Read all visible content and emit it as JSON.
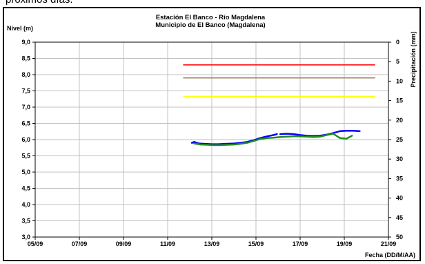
{
  "page": {
    "top_text": "próximos días."
  },
  "chart_data": {
    "type": "line",
    "title": "Estación El Banco - Río Magdalena",
    "subtitle": "Municipio de El Banco (Magdalena)",
    "ylabel": "Nivel (m)",
    "y2label": "Precipitación (mm)",
    "xlabel": "Fecha (DD/M/AA)",
    "x_ticks": [
      {
        "label": "05/09",
        "day": 5
      },
      {
        "label": "07/09",
        "day": 7
      },
      {
        "label": "09/09",
        "day": 9
      },
      {
        "label": "11/09",
        "day": 11
      },
      {
        "label": "13/09",
        "day": 13
      },
      {
        "label": "15/09",
        "day": 15
      },
      {
        "label": "17/09",
        "day": 17
      },
      {
        "label": "19/09",
        "day": 19
      },
      {
        "label": "21/09",
        "day": 21
      }
    ],
    "xlim": [
      5,
      21
    ],
    "ylim": [
      3.0,
      9.0
    ],
    "y_ticks": [
      {
        "label": "9,0",
        "v": 9.0
      },
      {
        "label": "8,5",
        "v": 8.5
      },
      {
        "label": "8,0",
        "v": 8.0
      },
      {
        "label": "7,5",
        "v": 7.5
      },
      {
        "label": "7,0",
        "v": 7.0
      },
      {
        "label": "6,5",
        "v": 6.5
      },
      {
        "label": "6,0",
        "v": 6.0
      },
      {
        "label": "5,5",
        "v": 5.5
      },
      {
        "label": "5,0",
        "v": 5.0
      },
      {
        "label": "4,5",
        "v": 4.5
      },
      {
        "label": "4,0",
        "v": 4.0
      },
      {
        "label": "3,5",
        "v": 3.5
      },
      {
        "label": "3,0",
        "v": 3.0
      }
    ],
    "y2lim": [
      0,
      50
    ],
    "y2_ticks": [
      {
        "label": "0",
        "v": 0
      },
      {
        "label": "5",
        "v": 5
      },
      {
        "label": "10",
        "v": 10
      },
      {
        "label": "15",
        "v": 15
      },
      {
        "label": "20",
        "v": 20
      },
      {
        "label": "25",
        "v": 25
      },
      {
        "label": "30",
        "v": 30
      },
      {
        "label": "35",
        "v": 35
      },
      {
        "label": "40",
        "v": 40
      },
      {
        "label": "45",
        "v": 45
      },
      {
        "label": "50",
        "v": 50
      }
    ],
    "grid": true,
    "thresholds": [
      {
        "value": 8.3,
        "from": 11.7,
        "to": 20.4,
        "color": "#ff0000"
      },
      {
        "value": 7.9,
        "from": 11.7,
        "to": 20.4,
        "color": "#a08060"
      },
      {
        "value": 7.33,
        "from": 11.7,
        "to": 20.4,
        "color": "#ffff00"
      }
    ],
    "series": [
      {
        "color": "#0000ff",
        "width": 2.5,
        "x": [
          12.1,
          12.2,
          12.4,
          12.7,
          13.0,
          13.3,
          13.6,
          14.0,
          14.3,
          14.6,
          14.9,
          15.2,
          15.5,
          15.8,
          15.95,
          null,
          16.1,
          16.4,
          16.7,
          17.0,
          17.3,
          17.6,
          17.9,
          18.2,
          18.5,
          18.8,
          19.1,
          19.4,
          19.7
        ],
        "values": [
          5.9,
          5.93,
          5.88,
          5.87,
          5.86,
          5.86,
          5.87,
          5.88,
          5.9,
          5.93,
          5.98,
          6.05,
          6.1,
          6.14,
          6.17,
          null,
          6.17,
          6.18,
          6.17,
          6.14,
          6.12,
          6.11,
          6.12,
          6.15,
          6.2,
          6.26,
          6.27,
          6.27,
          6.26
        ]
      },
      {
        "color": "#228b22",
        "width": 2.5,
        "x": [
          12.2,
          12.5,
          12.8,
          13.1,
          13.4,
          13.7,
          14.0,
          14.3,
          14.6,
          14.9,
          15.2,
          15.5,
          15.8,
          16.1,
          16.4,
          16.7,
          17.0,
          17.3,
          17.6,
          17.9,
          18.2,
          18.5,
          18.8,
          19.1,
          19.35
        ],
        "values": [
          5.88,
          5.85,
          5.84,
          5.83,
          5.83,
          5.84,
          5.85,
          5.87,
          5.9,
          5.96,
          6.02,
          6.05,
          6.06,
          6.08,
          6.09,
          6.1,
          6.1,
          6.09,
          6.08,
          6.09,
          6.14,
          6.18,
          6.05,
          6.03,
          6.12
        ]
      }
    ]
  }
}
